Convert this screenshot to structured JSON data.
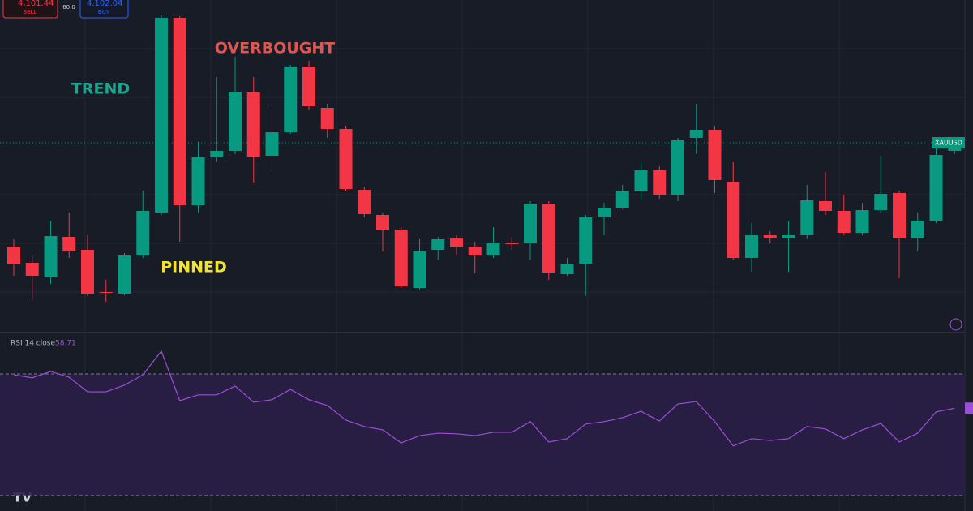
{
  "header": {
    "sell_price": "4,101.44",
    "sell_sup": "0",
    "sell_label": "SELL",
    "spread": "60.0",
    "buy_price": "4,102.04",
    "buy_sup": "0",
    "buy_label": "BUY"
  },
  "chart_data": [
    {
      "type": "candlestick",
      "symbol": "XAUUSD",
      "last_price": 4101.0,
      "ylim": [
        4077.6,
        4118.6
      ],
      "up_color": "#089981",
      "down_color": "#f23645",
      "annotations": [
        {
          "text": "TREND",
          "color": "#1fa58f"
        },
        {
          "text": "OVERBOUGHT",
          "color": "#e0554f"
        },
        {
          "text": "PINNED",
          "color": "#f2e233"
        }
      ],
      "open": [
        4088.2,
        4086.2,
        4084.4,
        4089.4,
        4087.8,
        4082.6,
        4082.4,
        4087.1,
        4092.4,
        4116.4,
        4093.3,
        4099.2,
        4100.0,
        4107.2,
        4099.4,
        4102.3,
        4110.4,
        4105.3,
        4102.7,
        4095.2,
        4092.1,
        4090.3,
        4083.1,
        4087.8,
        4089.2,
        4088.2,
        4087.1,
        4088.6,
        4088.6,
        4093.5,
        4084.8,
        4086.1,
        4091.8,
        4093.0,
        4095.0,
        4097.6,
        4094.6,
        4101.6,
        4102.6,
        4096.2,
        4086.8,
        4089.6,
        4089.2,
        4089.6,
        4093.8,
        4092.6,
        4089.9,
        4092.7,
        4094.8,
        4089.2,
        4091.4,
        4100.0
      ],
      "high": [
        4089.1,
        4087.1,
        4091.4,
        4092.4,
        4089.6,
        4084.1,
        4087.4,
        4095.1,
        4116.8,
        4116.6,
        4101.1,
        4109.1,
        4111.6,
        4109.1,
        4105.6,
        4110.6,
        4111.1,
        4105.8,
        4103.1,
        4095.6,
        4092.4,
        4090.6,
        4089.1,
        4089.4,
        4089.6,
        4088.8,
        4090.6,
        4089.4,
        4093.8,
        4093.8,
        4086.8,
        4092.1,
        4093.6,
        4095.8,
        4098.6,
        4098.1,
        4101.6,
        4105.8,
        4103.1,
        4098.6,
        4091.1,
        4090.1,
        4091.4,
        4095.8,
        4097.4,
        4094.6,
        4093.6,
        4099.4,
        4095.1,
        4092.4,
        4100.6,
        4101.4
      ],
      "low": [
        4084.6,
        4081.6,
        4083.6,
        4086.8,
        4082.1,
        4081.4,
        4082.2,
        4086.8,
        4092.1,
        4088.8,
        4092.4,
        4098.6,
        4099.6,
        4096.1,
        4097.1,
        4102.1,
        4105.1,
        4101.6,
        4095.1,
        4091.8,
        4087.6,
        4083.1,
        4082.9,
        4086.6,
        4087.1,
        4084.9,
        4086.8,
        4087.8,
        4086.6,
        4084.1,
        4084.6,
        4082.1,
        4089.6,
        4092.8,
        4093.8,
        4094.1,
        4093.8,
        4099.6,
        4094.8,
        4086.6,
        4085.1,
        4088.6,
        4085.1,
        4089.1,
        4092.1,
        4089.6,
        4089.6,
        4092.4,
        4084.3,
        4087.6,
        4091.1,
        4099.6
      ],
      "close": [
        4086.0,
        4084.6,
        4089.5,
        4087.6,
        4082.4,
        4082.5,
        4087.1,
        4092.6,
        4116.4,
        4093.3,
        4099.2,
        4100.0,
        4107.3,
        4099.3,
        4102.3,
        4110.4,
        4105.5,
        4102.7,
        4095.3,
        4092.2,
        4090.3,
        4083.3,
        4087.6,
        4089.1,
        4088.2,
        4087.1,
        4088.7,
        4088.5,
        4093.5,
        4085.0,
        4086.1,
        4091.8,
        4093.0,
        4095.0,
        4097.6,
        4094.6,
        4101.3,
        4102.6,
        4096.4,
        4086.8,
        4089.6,
        4089.2,
        4089.6,
        4093.9,
        4092.6,
        4089.9,
        4092.7,
        4094.7,
        4089.2,
        4091.4,
        4099.5,
        4100.4
      ]
    },
    {
      "type": "line",
      "title": "RSI 14 close",
      "color": "#9c4fd6",
      "ylim": [
        24.9,
        83.6
      ],
      "levels": [
        70,
        30
      ],
      "values": [
        69.7,
        68.7,
        70.8,
        68.9,
        64.1,
        64.1,
        66.3,
        69.7,
        77.5,
        61.2,
        63.1,
        63.1,
        66.0,
        60.7,
        61.5,
        64.9,
        61.5,
        59.6,
        54.8,
        52.7,
        51.6,
        47.3,
        49.7,
        50.5,
        50.3,
        49.7,
        50.8,
        50.8,
        54.3,
        47.6,
        48.7,
        53.5,
        54.3,
        55.6,
        57.7,
        54.5,
        60.1,
        60.9,
        54.3,
        46.3,
        48.7,
        48.1,
        48.7,
        52.7,
        51.9,
        48.7,
        51.6,
        53.7,
        47.6,
        50.5,
        57.5,
        58.71
      ]
    }
  ]
}
